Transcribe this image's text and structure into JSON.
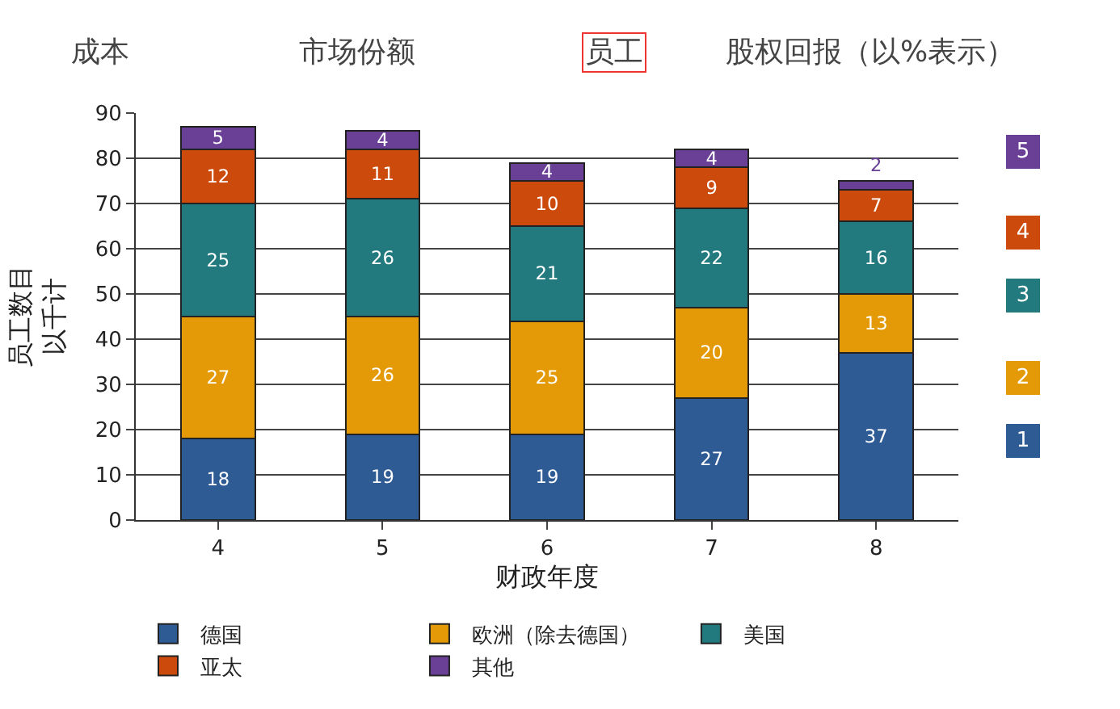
{
  "chart_data": {
    "type": "bar",
    "stacked": true,
    "xlabel": "财政年度",
    "ylabel": "员工数目以千计",
    "annotations": [
      "成本",
      "市场份额",
      "员工",
      "股权回报（以%表示）",
      "1",
      "2",
      "3",
      "4",
      "5"
    ],
    "categories": [
      "4",
      "5",
      "6",
      "7",
      "8"
    ],
    "series": [
      {
        "name": "德国",
        "color": "#2e5b94",
        "values": [
          18,
          19,
          19,
          27,
          37
        ]
      },
      {
        "name": "欧洲（除去德国）",
        "color": "#e39a06",
        "values": [
          27,
          26,
          25,
          20,
          13
        ]
      },
      {
        "name": "美国",
        "color": "#237a7e",
        "values": [
          25,
          26,
          21,
          22,
          16
        ]
      },
      {
        "name": "亚太",
        "color": "#cc4a0b",
        "values": [
          12,
          11,
          10,
          9,
          7
        ]
      },
      {
        "name": "其他",
        "color": "#6a3f96",
        "values": [
          5,
          4,
          4,
          4,
          2
        ]
      }
    ],
    "ylim": [
      0,
      90
    ],
    "yticks": [
      0,
      10,
      20,
      30,
      40,
      50,
      60,
      70,
      80,
      90
    ],
    "grid": "y",
    "data_labels": true,
    "legend": "bottom"
  }
}
